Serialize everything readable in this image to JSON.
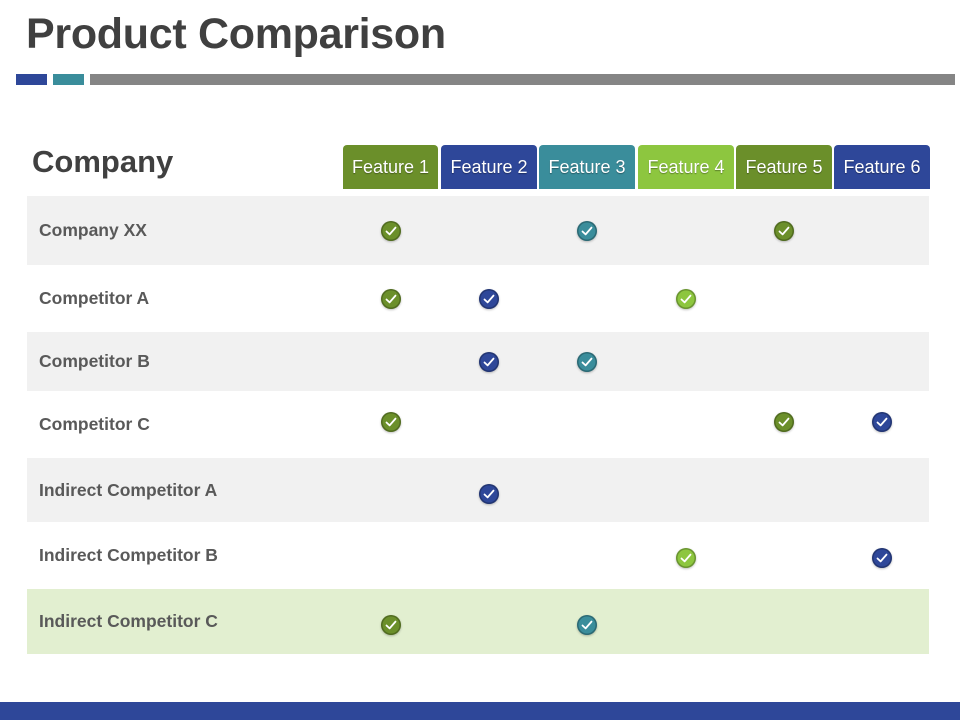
{
  "title": "Product Comparison",
  "table": {
    "company_header": "Company",
    "features": [
      {
        "label": "Feature 1",
        "color": "#6b8f2a"
      },
      {
        "label": "Feature 2",
        "color": "#2e4799"
      },
      {
        "label": "Feature 3",
        "color": "#3a8d9b"
      },
      {
        "label": "Feature 4",
        "color": "#8dc63f"
      },
      {
        "label": "Feature 5",
        "color": "#6b8f2a"
      },
      {
        "label": "Feature 6",
        "color": "#2e4799"
      }
    ],
    "rows": [
      {
        "name": "Company XX",
        "checks": [
          true,
          false,
          true,
          false,
          true,
          false
        ],
        "background": "#f1f1f1"
      },
      {
        "name": "Competitor A",
        "checks": [
          true,
          true,
          false,
          true,
          false,
          false
        ],
        "background": "#ffffff"
      },
      {
        "name": "Competitor B",
        "checks": [
          false,
          true,
          true,
          false,
          false,
          false
        ],
        "background": "#f1f1f1"
      },
      {
        "name": "Competitor C",
        "checks": [
          true,
          false,
          false,
          false,
          true,
          true
        ],
        "background": "#ffffff"
      },
      {
        "name": "Indirect Competitor A",
        "checks": [
          false,
          true,
          false,
          false,
          false,
          false
        ],
        "background": "#f1f1f1"
      },
      {
        "name": "Indirect Competitor B",
        "checks": [
          false,
          false,
          false,
          true,
          false,
          true
        ],
        "background": "#ffffff"
      },
      {
        "name": "Indirect Competitor C",
        "checks": [
          true,
          false,
          true,
          false,
          false,
          false
        ],
        "background": "#e2efd0"
      }
    ],
    "check_icon": "check-circle-icon"
  },
  "colors": {
    "title_text": "#404040",
    "deco_blue": "#2e4799",
    "deco_teal": "#3a8d9b",
    "deco_gray": "#858585",
    "bottom_bar": "#2e4799"
  }
}
